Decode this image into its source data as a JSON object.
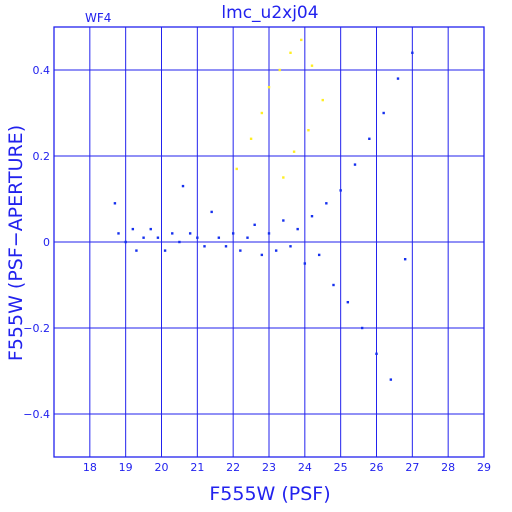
{
  "chart_data": {
    "type": "scatter",
    "title": "lmc_u2xj04",
    "detector_label": "WF4",
    "xlabel": "F555W (PSF)",
    "ylabel": "F555W (PSF−APERTURE)",
    "xlim": [
      17,
      29
    ],
    "ylim": [
      -0.5,
      0.5
    ],
    "x_ticks": [
      "18",
      "19",
      "20",
      "21",
      "22",
      "23",
      "24",
      "25",
      "26",
      "27",
      "28",
      "29"
    ],
    "y_ticks": [
      "0.4",
      "0.2",
      "0",
      "−0.2",
      "−0.4"
    ],
    "grid": true,
    "colors": {
      "axes": "#2222ee",
      "points": "#1530ee",
      "highlight": "#ffee22",
      "background": "#ffffff"
    },
    "series": [
      {
        "color": "#1530ee",
        "points": [
          [
            18.7,
            0.09
          ],
          [
            18.8,
            0.02
          ],
          [
            19.0,
            0.0
          ],
          [
            19.2,
            0.03
          ],
          [
            19.3,
            -0.02
          ],
          [
            19.5,
            0.01
          ],
          [
            19.7,
            0.03
          ],
          [
            19.9,
            0.01
          ],
          [
            20.1,
            -0.02
          ],
          [
            20.3,
            0.02
          ],
          [
            20.5,
            0.0
          ],
          [
            20.6,
            0.13
          ],
          [
            20.8,
            0.02
          ],
          [
            21.0,
            0.01
          ],
          [
            21.2,
            -0.01
          ],
          [
            21.4,
            0.07
          ],
          [
            21.6,
            0.01
          ],
          [
            21.8,
            -0.01
          ],
          [
            22.0,
            0.02
          ],
          [
            22.2,
            -0.02
          ],
          [
            22.4,
            0.01
          ],
          [
            22.6,
            0.04
          ],
          [
            22.8,
            -0.03
          ],
          [
            23.0,
            0.02
          ],
          [
            23.2,
            -0.02
          ],
          [
            23.4,
            0.05
          ],
          [
            23.6,
            -0.01
          ],
          [
            23.8,
            0.03
          ],
          [
            24.0,
            -0.05
          ],
          [
            24.2,
            0.06
          ],
          [
            24.4,
            -0.03
          ],
          [
            24.6,
            0.09
          ],
          [
            24.8,
            -0.1
          ],
          [
            25.0,
            0.12
          ],
          [
            25.2,
            -0.14
          ],
          [
            25.4,
            0.18
          ],
          [
            25.6,
            -0.2
          ],
          [
            25.8,
            0.24
          ],
          [
            26.0,
            -0.26
          ],
          [
            26.2,
            0.3
          ],
          [
            26.4,
            -0.32
          ],
          [
            26.6,
            0.38
          ],
          [
            26.8,
            -0.04
          ],
          [
            27.0,
            0.44
          ]
        ]
      },
      {
        "color": "#ffee22",
        "points": [
          [
            22.1,
            0.17
          ],
          [
            22.5,
            0.24
          ],
          [
            22.8,
            0.3
          ],
          [
            23.0,
            0.36
          ],
          [
            23.3,
            0.4
          ],
          [
            23.6,
            0.44
          ],
          [
            23.9,
            0.47
          ],
          [
            24.2,
            0.41
          ],
          [
            24.5,
            0.33
          ],
          [
            24.1,
            0.26
          ],
          [
            23.7,
            0.21
          ],
          [
            23.4,
            0.15
          ]
        ]
      }
    ]
  }
}
